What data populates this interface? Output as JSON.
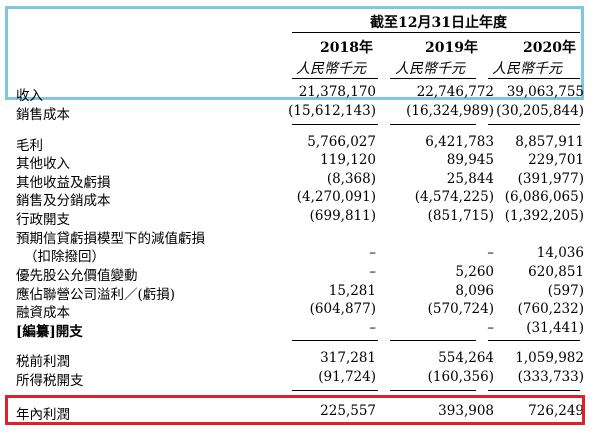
{
  "header": {
    "period": "截至12月31日止年度",
    "years": [
      "2018年",
      "2019年",
      "2020年"
    ],
    "unit": "人民幣千元"
  },
  "rows": [
    {
      "label": "收入",
      "values": [
        "21,378,170",
        "22,746,772",
        "39,063,755"
      ]
    },
    {
      "label": "銷售成本",
      "values": [
        "(15,612,143)",
        "(16,324,989)",
        "(30,205,844)"
      ]
    },
    {
      "label": "毛利",
      "values": [
        "5,766,027",
        "6,421,783",
        "8,857,911"
      ]
    },
    {
      "label": "其他收入",
      "values": [
        "119,120",
        "89,945",
        "229,701"
      ]
    },
    {
      "label": "其他收益及虧損",
      "values": [
        "(8,368)",
        "25,844",
        "(391,977)"
      ]
    },
    {
      "label": "銷售及分銷成本",
      "values": [
        "(4,270,091)",
        "(4,574,225)",
        "(6,086,065)"
      ]
    },
    {
      "label": "行政開支",
      "values": [
        "(699,811)",
        "(851,715)",
        "(1,392,205)"
      ]
    },
    {
      "label": "預期信貸虧損模型下的減值虧損",
      "values": [
        "",
        "",
        ""
      ]
    },
    {
      "label": "（扣除撥回）",
      "values": [
        "–",
        "–",
        "14,036"
      ]
    },
    {
      "label": "優先股公允價值變動",
      "values": [
        "–",
        "5,260",
        "620,851"
      ]
    },
    {
      "label": "應佔聯營公司溢利／(虧損)",
      "values": [
        "15,281",
        "8,096",
        "(597)"
      ]
    },
    {
      "label": "融資成本",
      "values": [
        "(604,877)",
        "(570,724)",
        "(760,232)"
      ]
    },
    {
      "label": "[編纂]開支",
      "values": [
        "–",
        "–",
        "(31,441)"
      ]
    },
    {
      "label": "税前利潤",
      "values": [
        "317,281",
        "554,264",
        "1,059,982"
      ]
    },
    {
      "label": "所得税開支",
      "values": [
        "(91,724)",
        "(160,356)",
        "(333,733)"
      ]
    },
    {
      "label": "年內利潤",
      "values": [
        "225,557",
        "393,908",
        "726,249"
      ]
    }
  ]
}
